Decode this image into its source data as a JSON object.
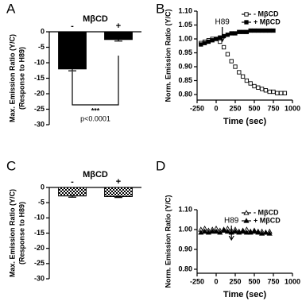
{
  "chart_data": [
    {
      "type": "bar",
      "panel": "A",
      "title": "MβCD",
      "ylabel": [
        "Max. Emission Ratio (Y/C)",
        "(Response to H89)"
      ],
      "categories": [
        "-",
        "+"
      ],
      "values": [
        -12,
        -2.5
      ],
      "errors": [
        0.6,
        0.5
      ],
      "color": "#000000",
      "pattern": false,
      "ylim": [
        -30,
        0
      ],
      "yticks": [
        0,
        -5,
        -10,
        -15,
        -20,
        -25,
        -30
      ],
      "annotations": [
        "***",
        "p<0.0001"
      ]
    },
    {
      "type": "line",
      "panel": "B",
      "ylabel": [
        "Norm. Emission Ratio (Y/C)"
      ],
      "xlabel": "Time (sec)",
      "legend": "upper right",
      "annotation": {
        "text": "H89",
        "x": 80
      },
      "xlim": [
        -250,
        1000
      ],
      "xticks": [
        -250,
        0,
        250,
        500,
        750,
        1000
      ],
      "ylim": [
        0.78,
        1.1
      ],
      "yticks": [
        {
          "value": 0.8,
          "label": "0.80"
        },
        0.85,
        {
          "value": 0.9,
          "label": "0.90"
        },
        0.95,
        {
          "value": 1.0,
          "label": "1.00"
        },
        1.05,
        {
          "value": 1.1,
          "label": "1.10"
        }
      ],
      "series": [
        {
          "name": "- MβCD",
          "color": "#000000",
          "marker": "square-open",
          "x": [
            -200,
            -150,
            -100,
            -50,
            0,
            50,
            100,
            150,
            200,
            250,
            300,
            350,
            400,
            450,
            500,
            550,
            600,
            650,
            700,
            750,
            800,
            850,
            900
          ],
          "values": [
            0.985,
            0.99,
            0.995,
            1.0,
            1.0,
            0.99,
            0.97,
            0.945,
            0.92,
            0.9,
            0.88,
            0.865,
            0.85,
            0.84,
            0.83,
            0.825,
            0.82,
            0.815,
            0.81,
            0.81,
            0.805,
            0.805,
            0.805
          ]
        },
        {
          "name": "+ MβCD",
          "color": "#000000",
          "marker": "square",
          "x": [
            -200,
            -150,
            -100,
            -50,
            0,
            50,
            100,
            150,
            200,
            250,
            300,
            350,
            400,
            450,
            500,
            550,
            600,
            650,
            700,
            750
          ],
          "values": [
            0.98,
            0.985,
            0.99,
            0.995,
            1.0,
            1.005,
            1.01,
            1.015,
            1.02,
            1.02,
            1.025,
            1.025,
            1.025,
            1.03,
            1.03,
            1.03,
            1.03,
            1.03,
            1.03,
            1.03
          ]
        }
      ]
    },
    {
      "type": "bar",
      "panel": "C",
      "title": "MβCD",
      "ylabel": [
        "Max. Emission Ratio (Y/C)",
        "(Response to H89)"
      ],
      "categories": [
        "-",
        "+"
      ],
      "values": [
        -2.8,
        -3.0
      ],
      "errors": [
        0.4,
        0.3
      ],
      "color": "#000000",
      "pattern": true,
      "ylim": [
        -30,
        0
      ],
      "yticks": [
        0,
        -5,
        -10,
        -15,
        -20,
        -25,
        -30
      ]
    },
    {
      "type": "line",
      "panel": "D",
      "ylabel": [
        "Norm. Emission Ratio (Y/C)"
      ],
      "xlabel": "Time (sec)",
      "legend": "upper right",
      "annotation": {
        "text": "H89",
        "x": 200
      },
      "xlim": [
        -250,
        1000
      ],
      "xticks": [
        -250,
        0,
        250,
        500,
        750,
        1000
      ],
      "ylim": [
        0.78,
        1.1
      ],
      "yticks": [
        {
          "value": 0.8,
          "label": "0.80"
        },
        {
          "value": 0.9,
          "label": "0.90"
        },
        {
          "value": 1.0,
          "label": "1.00"
        },
        {
          "value": 1.1,
          "label": "1.10"
        }
      ],
      "series": [
        {
          "name": "- MβCD",
          "color": "#000000",
          "marker": "triangle-open",
          "x": [
            -200,
            -150,
            -100,
            -50,
            0,
            50,
            100,
            150,
            200,
            250,
            300,
            350,
            400,
            450,
            500,
            550,
            600,
            650,
            700
          ],
          "values": [
            1.0,
            1.005,
            0.995,
            1.0,
            1.005,
            0.995,
            1.0,
            1.005,
            0.995,
            1.0,
            0.99,
            0.995,
            1.0,
            0.99,
            0.995,
            0.99,
            0.99,
            0.985,
            0.99
          ]
        },
        {
          "name": "+ MβCD",
          "color": "#000000",
          "marker": "triangle",
          "x": [
            -200,
            -150,
            -100,
            -50,
            0,
            50,
            100,
            150,
            200,
            250,
            300,
            350,
            400,
            450,
            500,
            550,
            600,
            650,
            700
          ],
          "values": [
            0.985,
            0.99,
            0.985,
            0.99,
            0.99,
            0.985,
            0.995,
            0.99,
            0.985,
            0.99,
            0.985,
            0.99,
            0.985,
            0.985,
            0.99,
            0.985,
            0.98,
            0.985,
            0.98
          ]
        }
      ]
    }
  ]
}
